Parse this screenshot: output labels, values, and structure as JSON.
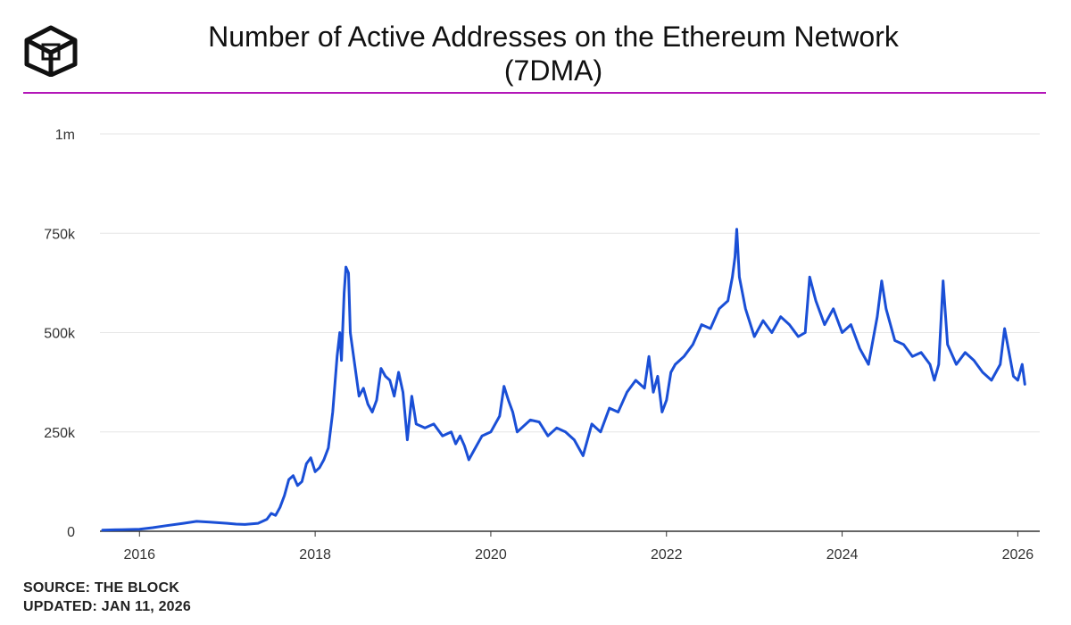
{
  "header": {
    "title_line1": "Number of Active Addresses on the Ethereum Network",
    "title_line2": "(7DMA)",
    "logo_icon": "the-block-cube-logo-icon",
    "accent_color": "#b316b8"
  },
  "footer": {
    "source": "SOURCE: THE BLOCK",
    "updated": "UPDATED: JAN 11, 2026"
  },
  "chart_data": {
    "type": "line",
    "title": "Number of Active Addresses on the Ethereum Network (7DMA)",
    "xlabel": "",
    "ylabel": "",
    "xlim": [
      2015.55,
      2026.25
    ],
    "ylim": [
      0,
      1000000
    ],
    "x_ticks": [
      2016,
      2018,
      2020,
      2022,
      2024,
      2026
    ],
    "x_tick_labels": [
      "2016",
      "2018",
      "2020",
      "2022",
      "2024",
      "2026"
    ],
    "y_ticks": [
      0,
      250000,
      500000,
      750000,
      1000000
    ],
    "y_tick_labels": [
      "0",
      "250k",
      "500k",
      "750k",
      "1m"
    ],
    "grid": true,
    "line_color": "#1a4fd6",
    "series": [
      {
        "name": "Active Addresses (7DMA)",
        "points": [
          [
            2015.58,
            3000
          ],
          [
            2015.8,
            4000
          ],
          [
            2016.0,
            5000
          ],
          [
            2016.15,
            9000
          ],
          [
            2016.3,
            14000
          ],
          [
            2016.5,
            20000
          ],
          [
            2016.65,
            25000
          ],
          [
            2016.8,
            23000
          ],
          [
            2017.0,
            20000
          ],
          [
            2017.1,
            18000
          ],
          [
            2017.2,
            17000
          ],
          [
            2017.35,
            20000
          ],
          [
            2017.45,
            30000
          ],
          [
            2017.5,
            45000
          ],
          [
            2017.55,
            40000
          ],
          [
            2017.6,
            60000
          ],
          [
            2017.65,
            90000
          ],
          [
            2017.7,
            130000
          ],
          [
            2017.75,
            140000
          ],
          [
            2017.8,
            115000
          ],
          [
            2017.85,
            125000
          ],
          [
            2017.9,
            170000
          ],
          [
            2017.95,
            185000
          ],
          [
            2018.0,
            150000
          ],
          [
            2018.05,
            160000
          ],
          [
            2018.1,
            180000
          ],
          [
            2018.15,
            210000
          ],
          [
            2018.2,
            300000
          ],
          [
            2018.25,
            440000
          ],
          [
            2018.28,
            500000
          ],
          [
            2018.3,
            430000
          ],
          [
            2018.33,
            600000
          ],
          [
            2018.35,
            665000
          ],
          [
            2018.38,
            650000
          ],
          [
            2018.4,
            500000
          ],
          [
            2018.45,
            420000
          ],
          [
            2018.5,
            340000
          ],
          [
            2018.55,
            360000
          ],
          [
            2018.6,
            320000
          ],
          [
            2018.65,
            300000
          ],
          [
            2018.7,
            330000
          ],
          [
            2018.75,
            410000
          ],
          [
            2018.8,
            390000
          ],
          [
            2018.85,
            380000
          ],
          [
            2018.9,
            340000
          ],
          [
            2018.95,
            400000
          ],
          [
            2019.0,
            350000
          ],
          [
            2019.05,
            230000
          ],
          [
            2019.1,
            340000
          ],
          [
            2019.15,
            270000
          ],
          [
            2019.25,
            260000
          ],
          [
            2019.35,
            270000
          ],
          [
            2019.45,
            240000
          ],
          [
            2019.55,
            250000
          ],
          [
            2019.6,
            220000
          ],
          [
            2019.65,
            240000
          ],
          [
            2019.7,
            215000
          ],
          [
            2019.75,
            180000
          ],
          [
            2019.8,
            200000
          ],
          [
            2019.9,
            240000
          ],
          [
            2020.0,
            250000
          ],
          [
            2020.1,
            290000
          ],
          [
            2020.15,
            365000
          ],
          [
            2020.2,
            330000
          ],
          [
            2020.25,
            300000
          ],
          [
            2020.3,
            250000
          ],
          [
            2020.35,
            260000
          ],
          [
            2020.45,
            280000
          ],
          [
            2020.55,
            275000
          ],
          [
            2020.65,
            240000
          ],
          [
            2020.75,
            260000
          ],
          [
            2020.85,
            250000
          ],
          [
            2020.95,
            230000
          ],
          [
            2021.05,
            190000
          ],
          [
            2021.15,
            270000
          ],
          [
            2021.25,
            250000
          ],
          [
            2021.35,
            310000
          ],
          [
            2021.45,
            300000
          ],
          [
            2021.55,
            350000
          ],
          [
            2021.65,
            380000
          ],
          [
            2021.75,
            360000
          ],
          [
            2021.8,
            440000
          ],
          [
            2021.85,
            350000
          ],
          [
            2021.9,
            390000
          ],
          [
            2021.95,
            300000
          ],
          [
            2022.0,
            330000
          ],
          [
            2022.05,
            400000
          ],
          [
            2022.1,
            420000
          ],
          [
            2022.2,
            440000
          ],
          [
            2022.3,
            470000
          ],
          [
            2022.4,
            520000
          ],
          [
            2022.5,
            510000
          ],
          [
            2022.6,
            560000
          ],
          [
            2022.7,
            580000
          ],
          [
            2022.75,
            640000
          ],
          [
            2022.78,
            690000
          ],
          [
            2022.8,
            760000
          ],
          [
            2022.83,
            640000
          ],
          [
            2022.9,
            560000
          ],
          [
            2023.0,
            490000
          ],
          [
            2023.1,
            530000
          ],
          [
            2023.2,
            500000
          ],
          [
            2023.3,
            540000
          ],
          [
            2023.4,
            520000
          ],
          [
            2023.5,
            490000
          ],
          [
            2023.58,
            500000
          ],
          [
            2023.63,
            640000
          ],
          [
            2023.7,
            580000
          ],
          [
            2023.8,
            520000
          ],
          [
            2023.9,
            560000
          ],
          [
            2024.0,
            500000
          ],
          [
            2024.1,
            520000
          ],
          [
            2024.2,
            460000
          ],
          [
            2024.3,
            420000
          ],
          [
            2024.4,
            540000
          ],
          [
            2024.45,
            630000
          ],
          [
            2024.5,
            560000
          ],
          [
            2024.6,
            480000
          ],
          [
            2024.7,
            470000
          ],
          [
            2024.8,
            440000
          ],
          [
            2024.9,
            450000
          ],
          [
            2025.0,
            420000
          ],
          [
            2025.05,
            380000
          ],
          [
            2025.1,
            420000
          ],
          [
            2025.15,
            630000
          ],
          [
            2025.2,
            470000
          ],
          [
            2025.3,
            420000
          ],
          [
            2025.4,
            450000
          ],
          [
            2025.5,
            430000
          ],
          [
            2025.6,
            400000
          ],
          [
            2025.7,
            380000
          ],
          [
            2025.8,
            420000
          ],
          [
            2025.85,
            510000
          ],
          [
            2025.9,
            450000
          ],
          [
            2025.95,
            390000
          ],
          [
            2026.0,
            380000
          ],
          [
            2026.05,
            420000
          ],
          [
            2026.08,
            370000
          ]
        ]
      }
    ]
  }
}
